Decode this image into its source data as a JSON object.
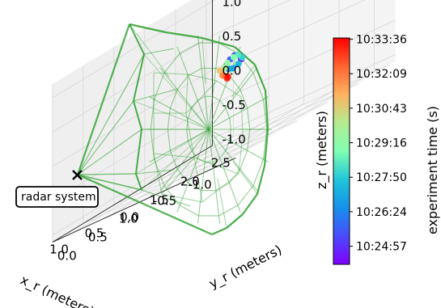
{
  "chart_data": {
    "type": "scatter",
    "projection": "3d",
    "title": "",
    "xlabel": "x_r (meters)",
    "ylabel": "y_r (meters)",
    "zlabel": "z_r (meters)",
    "x_ticks": [
      "-1.0",
      "-0.5",
      "0.0",
      "0.5",
      "1.0"
    ],
    "y_ticks": [
      "0.0",
      "0.5",
      "1.0",
      "1.5",
      "2.0",
      "2.5"
    ],
    "z_ticks": [
      "-1.0",
      "-0.5",
      "0.0",
      "0.5",
      "1.0"
    ],
    "xlim": [
      -1.3,
      1.3
    ],
    "ylim": [
      0.0,
      2.6
    ],
    "zlim": [
      -1.1,
      1.2
    ],
    "grid": true,
    "mesh": {
      "description": "field-of-view wireframe",
      "color": "#2ca02c"
    },
    "radar_marker": {
      "label": "radar system",
      "x": 0.0,
      "y": 0.0,
      "z": 0.0
    },
    "trajectory": {
      "points": [
        {
          "x": -0.55,
          "y": 0.95,
          "z": 0.18,
          "t": 0.02
        },
        {
          "x": -0.5,
          "y": 0.97,
          "z": 0.25,
          "t": 0.06
        },
        {
          "x": -0.42,
          "y": 0.99,
          "z": 0.27,
          "t": 0.1
        },
        {
          "x": -0.35,
          "y": 1.0,
          "z": 0.24,
          "t": 0.15
        },
        {
          "x": -0.3,
          "y": 1.0,
          "z": 0.18,
          "t": 0.2
        },
        {
          "x": -0.34,
          "y": 0.98,
          "z": 0.12,
          "t": 0.25
        },
        {
          "x": -0.42,
          "y": 0.96,
          "z": 0.1,
          "t": 0.3
        },
        {
          "x": -0.52,
          "y": 0.94,
          "z": 0.13,
          "t": 0.35
        },
        {
          "x": -0.58,
          "y": 0.93,
          "z": 0.2,
          "t": 0.4
        },
        {
          "x": -0.5,
          "y": 0.96,
          "z": 0.26,
          "t": 0.45
        },
        {
          "x": -0.4,
          "y": 1.0,
          "z": 0.25,
          "t": 0.5
        },
        {
          "x": -0.28,
          "y": 1.04,
          "z": 0.2,
          "t": 0.55
        },
        {
          "x": -0.22,
          "y": 1.06,
          "z": 0.15,
          "t": 0.6
        },
        {
          "x": -0.16,
          "y": 1.08,
          "z": 0.12,
          "t": 0.66
        },
        {
          "x": -0.12,
          "y": 1.1,
          "z": 0.13,
          "t": 0.72
        },
        {
          "x": -0.18,
          "y": 1.07,
          "z": 0.05,
          "t": 0.8
        },
        {
          "x": -0.24,
          "y": 1.05,
          "z": 0.02,
          "t": 0.86
        },
        {
          "x": -0.28,
          "y": 1.03,
          "z": -0.02,
          "t": 0.92
        },
        {
          "x": -0.3,
          "y": 1.02,
          "z": 0.0,
          "t": 0.98
        }
      ]
    },
    "colorbar": {
      "label": "experiment time (s)",
      "ticks": [
        "10:24:57",
        "10:26:24",
        "10:27:50",
        "10:29:16",
        "10:30:43",
        "10:32:09",
        "10:33:36"
      ],
      "colormap": "rainbow"
    }
  }
}
